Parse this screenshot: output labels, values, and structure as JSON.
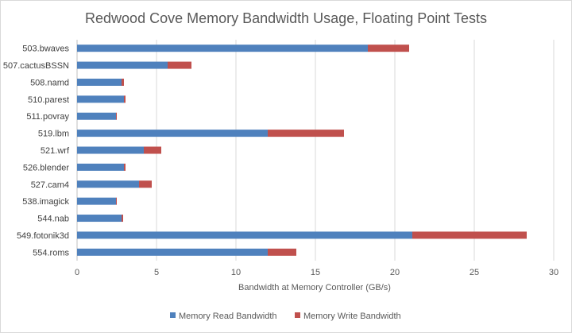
{
  "chart_data": {
    "type": "bar",
    "orientation": "horizontal",
    "stacked": true,
    "title": "Redwood Cove Memory Bandwidth Usage, Floating Point Tests",
    "xlabel": "Bandwidth at Memory Controller (GB/s)",
    "ylabel": "",
    "xlim": [
      0,
      30
    ],
    "xticks": [
      0,
      5,
      10,
      15,
      20,
      25,
      30
    ],
    "grid": "vertical",
    "legend": "bottom",
    "categories": [
      "503.bwaves",
      "507.cactusBSSN",
      "508.namd",
      "510.parest",
      "511.povray",
      "519.lbm",
      "521.wrf",
      "526.blender",
      "527.cam4",
      "538.imagick",
      "544.nab",
      "549.fotonik3d",
      "554.roms"
    ],
    "series": [
      {
        "name": "Memory Read Bandwidth",
        "color": "#4f81bd",
        "values": [
          18.3,
          5.7,
          2.8,
          2.95,
          2.45,
          12.0,
          4.2,
          2.95,
          3.9,
          2.45,
          2.8,
          21.1,
          12.0
        ]
      },
      {
        "name": "Memory Write Bandwidth",
        "color": "#c0504d",
        "values": [
          2.6,
          1.5,
          0.15,
          0.1,
          0.05,
          4.8,
          1.1,
          0.1,
          0.8,
          0.05,
          0.1,
          7.2,
          1.8
        ]
      }
    ]
  }
}
